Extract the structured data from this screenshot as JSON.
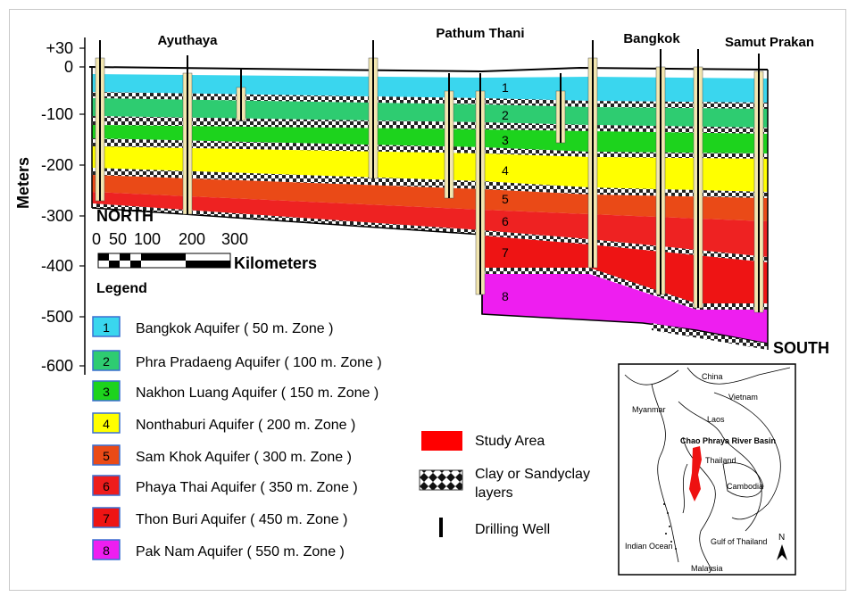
{
  "axis": {
    "label": "Meters",
    "ticks": [
      "+30",
      "0",
      "-100",
      "-200",
      "-300",
      "-400",
      "-500",
      "-600"
    ]
  },
  "places": [
    "Ayuthaya",
    "Pathum Thani",
    "Bangkok",
    "Samut Prakan"
  ],
  "directions": {
    "north": "NORTH",
    "south": "SOUTH"
  },
  "scale": {
    "ticks": [
      "0",
      "50",
      "100",
      "200",
      "300"
    ],
    "unit": "Kilometers"
  },
  "legend": {
    "title": "Legend",
    "aquifers": [
      {
        "num": "1",
        "label": "Bangkok Aquifer ( 50 m. Zone )",
        "color": "#3ad6ee"
      },
      {
        "num": "2",
        "label": "Phra Pradaeng Aquifer ( 100 m. Zone )",
        "color": "#2ecc71"
      },
      {
        "num": "3",
        "label": "Nakhon Luang Aquifer ( 150 m. Zone )",
        "color": "#1dd31d"
      },
      {
        "num": "4",
        "label": "Nonthaburi Aquifer ( 200 m. Zone )",
        "color": "#ffff00"
      },
      {
        "num": "5",
        "label": "Sam Khok Aquifer ( 300 m. Zone )",
        "color": "#ea4a17"
      },
      {
        "num": "6",
        "label": "Phaya Thai Aquifer ( 350 m. Zone )",
        "color": "#ee1c1c"
      },
      {
        "num": "7",
        "label": "Thon Buri Aquifer ( 450 m. Zone )",
        "color": "#ee1414"
      },
      {
        "num": "8",
        "label": "Pak Nam Aquifer ( 550 m. Zone )",
        "color": "#ee1ef0"
      }
    ],
    "extras": {
      "study_area": "Study Area",
      "study_area_color": "#ff0000",
      "clay_line1": "Clay or Sandyclay",
      "clay_line2": "layers",
      "well": "Drilling Well"
    }
  },
  "map": {
    "labels": [
      "China",
      "Myanmar",
      "Vietnam",
      "Laos",
      "Chao Phraya River Basin",
      "Thailand",
      "Cambodia",
      "Indian Ocean",
      "Gulf of Thailand",
      "Malaysia",
      "N"
    ]
  }
}
